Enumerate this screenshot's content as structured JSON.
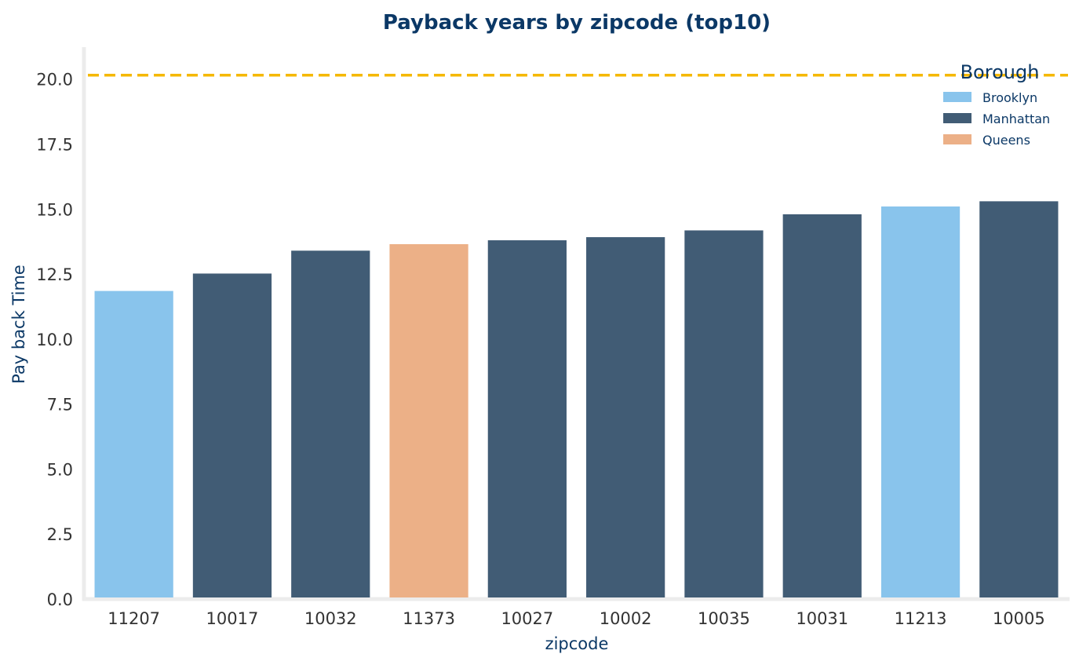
{
  "chart_data": {
    "type": "bar",
    "title": "Payback years by zipcode (top10)",
    "xlabel": "zipcode",
    "ylabel": "Pay back Time",
    "ylim": [
      0,
      21.2
    ],
    "yticks": [
      "0.0",
      "2.5",
      "5.0",
      "7.5",
      "10.0",
      "12.5",
      "15.0",
      "17.5",
      "20.0"
    ],
    "ytick_values": [
      0,
      2.5,
      5,
      7.5,
      10,
      12.5,
      15,
      17.5,
      20
    ],
    "categories": [
      "11207",
      "10017",
      "10032",
      "11373",
      "10027",
      "10002",
      "10035",
      "10031",
      "11213",
      "10005"
    ],
    "values": [
      11.85,
      12.52,
      13.4,
      13.65,
      13.8,
      13.92,
      14.18,
      14.8,
      15.1,
      15.3
    ],
    "groups": [
      "Brooklyn",
      "Manhattan",
      "Manhattan",
      "Queens",
      "Manhattan",
      "Manhattan",
      "Manhattan",
      "Manhattan",
      "Brooklyn",
      "Manhattan"
    ],
    "reference_line": {
      "y": 20.15,
      "color": "#f5b800",
      "style": "dashed"
    },
    "legend": {
      "title": "Borough",
      "position": "top-right",
      "entries": [
        {
          "name": "Brooklyn",
          "color": "#89c4ec"
        },
        {
          "name": "Manhattan",
          "color": "#415c75"
        },
        {
          "name": "Queens",
          "color": "#ecb087"
        }
      ]
    },
    "grid": false
  }
}
